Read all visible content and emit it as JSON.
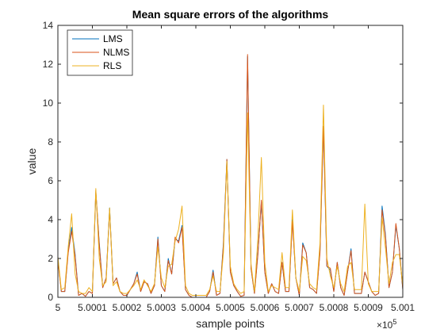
{
  "chart_data": {
    "type": "line",
    "title": "Mean square errors of the algorithms",
    "xlabel": "sample points",
    "ylabel": "value",
    "x_exponent_label": "×10",
    "x_exponent_power": "5",
    "xlim": [
      500000,
      500100
    ],
    "ylim": [
      0,
      14
    ],
    "xticks": [
      500000,
      500010,
      500020,
      500030,
      500040,
      500050,
      500060,
      500070,
      500080,
      500090,
      500100
    ],
    "xtick_labels": [
      "5",
      "5.0001",
      "5.0002",
      "5.0003",
      "5.0004",
      "5.0005",
      "5.0006",
      "5.0007",
      "5.0008",
      "5.0009",
      "5.001"
    ],
    "yticks": [
      0,
      2,
      4,
      6,
      8,
      10,
      12,
      14
    ],
    "ytick_labels": [
      "0",
      "2",
      "4",
      "6",
      "8",
      "10",
      "12",
      "14"
    ],
    "legend_position": "top-left",
    "grid": false,
    "x": [
      500000,
      500001,
      500002,
      500003,
      500004,
      500005,
      500006,
      500007,
      500008,
      500009,
      500010,
      500011,
      500012,
      500013,
      500014,
      500015,
      500016,
      500017,
      500018,
      500019,
      500020,
      500021,
      500022,
      500023,
      500024,
      500025,
      500026,
      500027,
      500028,
      500029,
      500030,
      500031,
      500032,
      500033,
      500034,
      500035,
      500036,
      500037,
      500038,
      500039,
      500040,
      500041,
      500042,
      500043,
      500044,
      500045,
      500046,
      500047,
      500048,
      500049,
      500050,
      500051,
      500052,
      500053,
      500054,
      500055,
      500056,
      500057,
      500058,
      500059,
      500060,
      500061,
      500062,
      500063,
      500064,
      500065,
      500066,
      500067,
      500068,
      500069,
      500070,
      500071,
      500072,
      500073,
      500074,
      500075,
      500076,
      500077,
      500078,
      500079,
      500080,
      500081,
      500082,
      500083,
      500084,
      500085,
      500086,
      500087,
      500088,
      500089,
      500090,
      500091,
      500092,
      500093,
      500094,
      500095,
      500096,
      500097,
      500098,
      500099,
      500100
    ],
    "series": [
      {
        "name": "LMS",
        "color": "#0072BD",
        "values": [
          2.0,
          0.3,
          0.3,
          2.4,
          3.6,
          2.2,
          0.1,
          0.2,
          0.05,
          0.3,
          0.2,
          5.4,
          2.8,
          0.5,
          1.0,
          4.6,
          0.7,
          1.0,
          0.3,
          0.1,
          0.1,
          0.4,
          0.7,
          1.3,
          0.3,
          0.8,
          0.7,
          0.2,
          0.6,
          3.1,
          0.6,
          0.3,
          2.0,
          1.2,
          3.0,
          2.9,
          3.7,
          0.4,
          0.1,
          0.0,
          0.0,
          0.0,
          0.0,
          0.0,
          0.3,
          1.4,
          0.1,
          0.2,
          2.8,
          7.1,
          1.3,
          0.6,
          0.3,
          0.05,
          0.1,
          12.4,
          1.5,
          0.2,
          2.3,
          4.9,
          1.3,
          0.2,
          0.7,
          0.3,
          0.2,
          1.8,
          0.3,
          0.3,
          4.0,
          1.0,
          0.1,
          2.8,
          2.3,
          0.5,
          0.4,
          0.2,
          2.4,
          8.8,
          1.6,
          1.4,
          0.3,
          1.8,
          0.5,
          0.1,
          1.3,
          2.5,
          0.2,
          0.2,
          0.2,
          1.3,
          0.8,
          0.3,
          0.1,
          0.2,
          4.7,
          3.2,
          0.5,
          1.3,
          3.7,
          2.5,
          0.4
        ]
      },
      {
        "name": "NLMS",
        "color": "#D95319",
        "values": [
          1.9,
          0.3,
          0.3,
          2.3,
          3.4,
          2.1,
          0.1,
          0.2,
          0.05,
          0.3,
          0.2,
          5.5,
          2.7,
          0.5,
          1.0,
          4.5,
          0.7,
          1.0,
          0.3,
          0.1,
          0.1,
          0.4,
          0.7,
          1.2,
          0.3,
          0.8,
          0.7,
          0.2,
          0.6,
          3.0,
          0.6,
          0.3,
          1.9,
          1.2,
          3.1,
          2.8,
          3.6,
          0.4,
          0.1,
          0.0,
          0.0,
          0.0,
          0.0,
          0.0,
          0.3,
          1.3,
          0.1,
          0.2,
          2.7,
          7.1,
          1.3,
          0.6,
          0.3,
          0.05,
          0.1,
          12.5,
          1.5,
          0.2,
          2.2,
          5.0,
          1.3,
          0.2,
          0.7,
          0.3,
          0.2,
          1.8,
          0.3,
          0.3,
          3.9,
          1.0,
          0.1,
          2.7,
          2.3,
          0.5,
          0.4,
          0.2,
          2.3,
          8.8,
          1.6,
          1.5,
          0.3,
          1.8,
          0.5,
          0.1,
          1.3,
          2.4,
          0.2,
          0.2,
          0.2,
          1.3,
          0.8,
          0.3,
          0.1,
          0.2,
          4.5,
          3.1,
          0.5,
          1.3,
          3.8,
          2.5,
          0.4
        ]
      },
      {
        "name": "RLS",
        "color": "#EDB120",
        "values": [
          2.1,
          0.4,
          0.5,
          2.6,
          4.3,
          1.2,
          0.3,
          0.2,
          0.2,
          0.5,
          0.3,
          5.6,
          2.0,
          0.6,
          0.8,
          4.6,
          0.6,
          0.8,
          0.3,
          0.2,
          0.2,
          0.4,
          0.6,
          0.9,
          0.4,
          0.9,
          0.6,
          0.3,
          0.7,
          2.6,
          1.0,
          0.5,
          1.6,
          1.7,
          2.9,
          3.5,
          4.7,
          0.6,
          0.2,
          0.1,
          0.1,
          0.1,
          0.1,
          0.1,
          0.4,
          1.1,
          0.3,
          0.3,
          2.3,
          7.0,
          1.6,
          0.7,
          0.4,
          0.2,
          0.3,
          9.5,
          1.7,
          0.3,
          3.1,
          7.2,
          1.8,
          0.3,
          0.6,
          0.5,
          0.4,
          2.3,
          0.5,
          0.5,
          4.5,
          1.0,
          0.3,
          2.1,
          1.9,
          0.7,
          0.5,
          0.4,
          2.8,
          9.9,
          2.0,
          1.1,
          0.5,
          1.6,
          0.7,
          0.3,
          1.6,
          1.8,
          0.4,
          0.4,
          0.4,
          4.8,
          0.7,
          0.3,
          0.3,
          0.3,
          4.1,
          2.5,
          0.7,
          1.8,
          2.2,
          2.2,
          0.6
        ]
      }
    ]
  }
}
